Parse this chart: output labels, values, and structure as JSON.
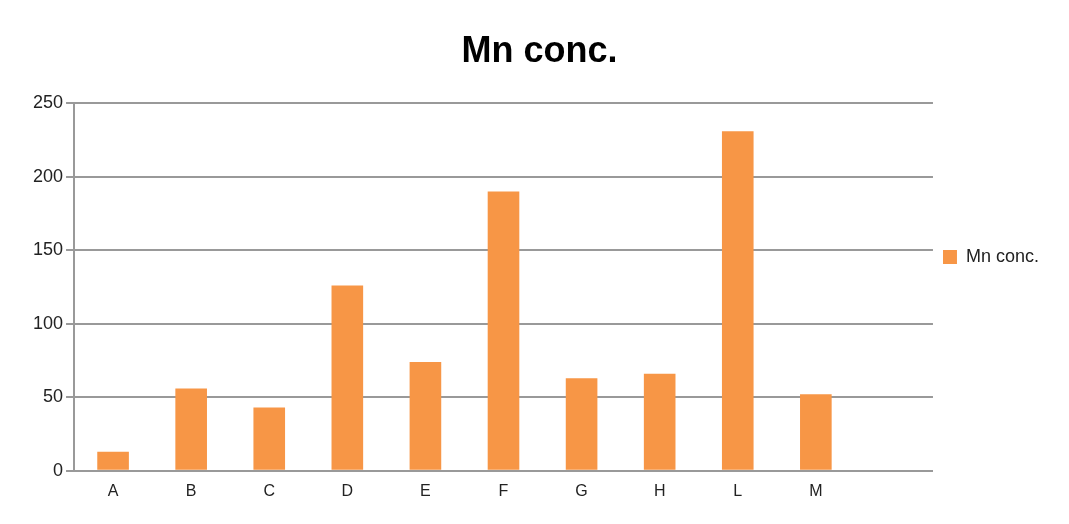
{
  "chart_data": {
    "type": "bar",
    "title": "Mn conc.",
    "categories": [
      "A",
      "B",
      "C",
      "D",
      "E",
      "F",
      "G",
      "H",
      "L",
      "M",
      null
    ],
    "series": [
      {
        "name": "Mn conc.",
        "color": "#f79646",
        "values": [
          13,
          56,
          43,
          126,
          74,
          190,
          63,
          66,
          231,
          52,
          null
        ]
      }
    ],
    "ylim": [
      0,
      250
    ],
    "yticks": [
      0,
      50,
      100,
      150,
      200,
      250
    ],
    "grid": "y",
    "legend": "right"
  }
}
